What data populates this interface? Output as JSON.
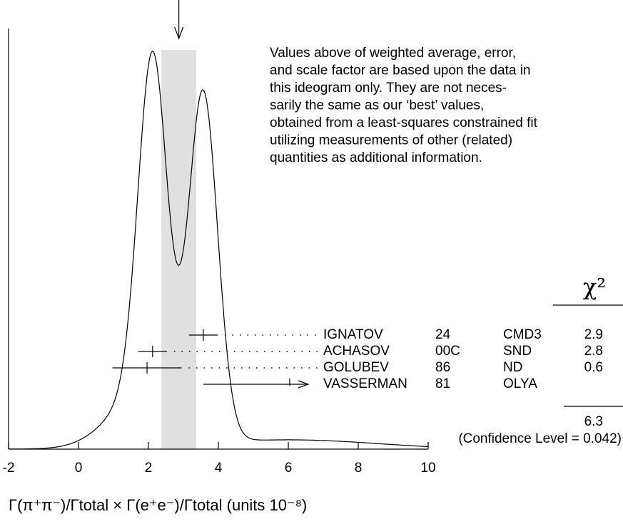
{
  "chart_data": {
    "type": "ideogram",
    "xlim": [
      -2,
      10
    ],
    "xticks": [
      -2,
      0,
      2,
      4,
      6,
      8,
      10
    ],
    "xlabel": "Γ(π⁺π⁻)/Γtotal × Γ(e⁺e⁻)/Γtotal (units 10⁻⁸)",
    "average": 2.87,
    "error": 0.5,
    "notes": [
      "Values above of weighted average, error,",
      "and scale factor are based upon the data in",
      "this ideogram only.  They are not neces-",
      "sarily the same as our ‘best’ values,",
      "obtained from a least-squares constrained fit",
      "utilizing measurements of other (related)",
      "quantities as additional information."
    ],
    "chi2_header": "χ²",
    "measurements": [
      {
        "name": "IGNATOV",
        "year": "24",
        "experiment": "CMD3",
        "value": 3.57,
        "error": 0.41,
        "chi2": 2.9
      },
      {
        "name": "ACHASOV",
        "year": "00C",
        "experiment": "SND",
        "value": 2.12,
        "error": 0.41,
        "chi2": 2.8
      },
      {
        "name": "GOLUBEV",
        "year": "86",
        "experiment": "ND",
        "value": 1.96,
        "error": 0.99,
        "chi2": 0.6
      },
      {
        "name": "VASSERMAN",
        "year": "81",
        "experiment": "OLYA",
        "value": 6.04,
        "error": 2.47
      }
    ],
    "chi2_total": 6.3,
    "confidence_level": "(Confidence Level = 0.042)"
  }
}
